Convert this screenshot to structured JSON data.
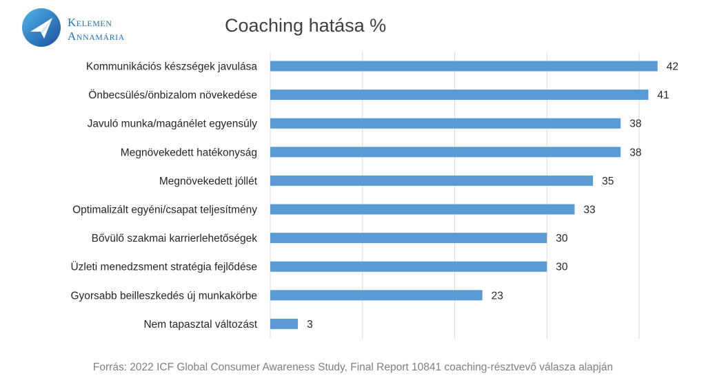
{
  "logo": {
    "line1": "Kelemen",
    "line2": "Annamária",
    "icon": "paper-plane-icon"
  },
  "chart_data": {
    "type": "bar",
    "orientation": "horizontal",
    "title": "Coaching hatása %",
    "categories": [
      "Kommunikációs készségek javulása",
      "Önbecsülés/önbizalom növekedése",
      "Javuló munka/magánélet egyensúly",
      "Megnövekedett hatékonyság",
      "Megnövekedett jóllét",
      "Optimalizált egyéni/csapat teljesítmény",
      "Bővülő szakmai karrierlehetőségek",
      "Üzleti menedzsment stratégia fejlődése",
      "Gyorsabb beilleszkedés új munkakörbe",
      "Nem tapasztal változást"
    ],
    "values": [
      42,
      41,
      38,
      38,
      35,
      33,
      30,
      30,
      23,
      3
    ],
    "xlim": [
      0,
      40
    ],
    "grid": true,
    "legend": "none",
    "bar_color": "#5b9bd5",
    "grid_color": "#d9d9d9"
  },
  "source": "Forrás: 2022 ICF Global Consumer Awareness Study, Final Report 10841 coaching-résztvevő válasza alapján"
}
